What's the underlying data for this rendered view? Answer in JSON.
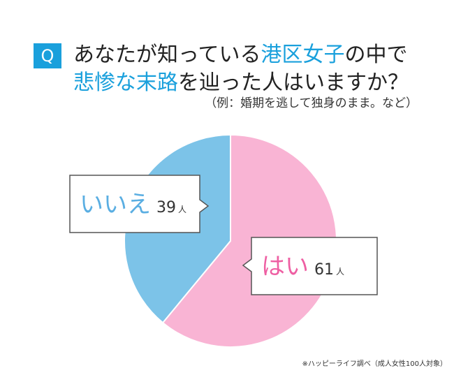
{
  "chart_data": {
    "type": "pie",
    "badge": "Q",
    "title_lines": [
      [
        {
          "text": "あなたが知っている",
          "color": "#222222"
        },
        {
          "text": "港区女子",
          "color": "#1aa0dc"
        },
        {
          "text": "の中で",
          "color": "#222222"
        }
      ],
      [
        {
          "text": "悲惨な末路",
          "color": "#1aa0dc"
        },
        {
          "text": "を辿った人はいますか？",
          "color": "#222222"
        }
      ]
    ],
    "subtitle": "（例：婚期を逃して独身のまま。など）",
    "categories": [
      "はい",
      "いいえ"
    ],
    "values": [
      61,
      39
    ],
    "colors": [
      "#f9b4d4",
      "#7cc3e8"
    ],
    "label_colors": [
      "#ee5fa3",
      "#5aaee2"
    ],
    "unit": "人",
    "source": "※ハッピーライフ調べ（成人女性100人対象）"
  }
}
